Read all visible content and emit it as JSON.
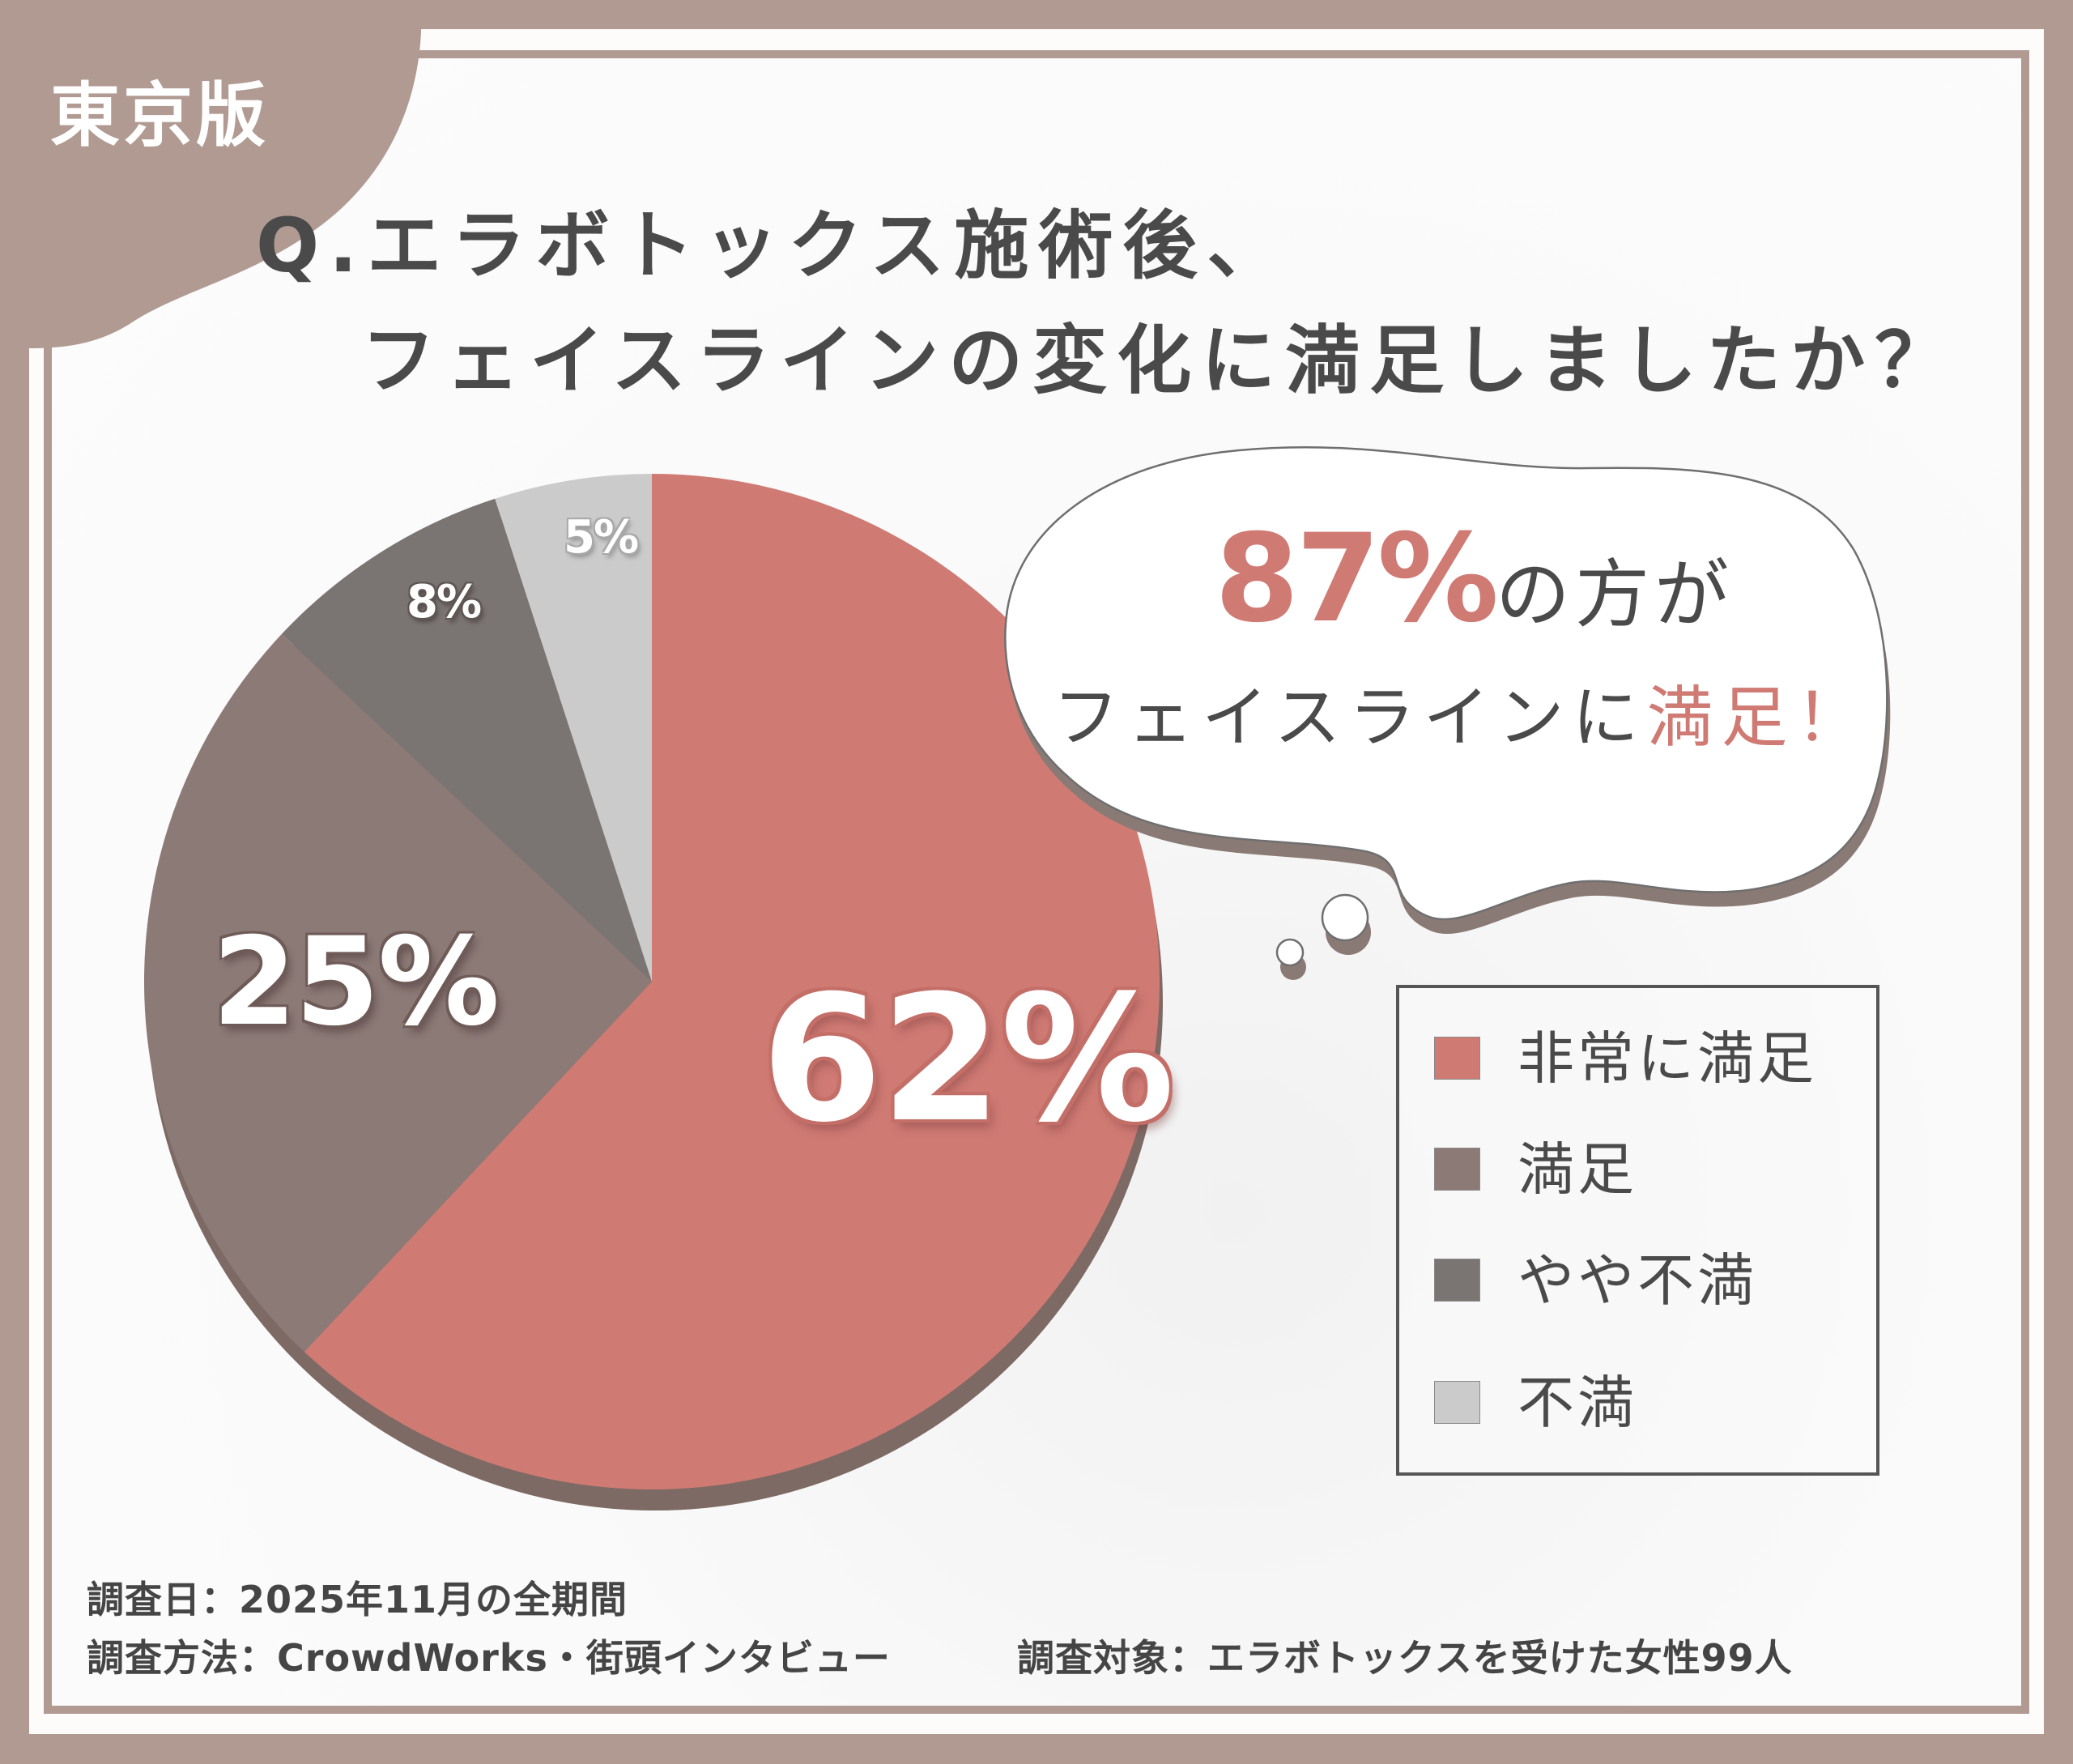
{
  "edition_tab": "東京版",
  "title": {
    "line1": "Q.エラボトックス施術後、",
    "line2": "フェイスラインの変化に満足しましたか？"
  },
  "callout": {
    "percent": "87%",
    "line1_rest": "の方が",
    "line2_prefix": "フェイスラインに",
    "line2_highlight": "満足！"
  },
  "legend": {
    "items": [
      {
        "label": "非常に満足",
        "color": "#d07a74"
      },
      {
        "label": "満足",
        "color": "#8c7a77"
      },
      {
        "label": "やや不満",
        "color": "#7a7472"
      },
      {
        "label": "不満",
        "color": "#cbcbcb"
      }
    ]
  },
  "pie_labels": {
    "very_satisfied": "62%",
    "satisfied": "25%",
    "somewhat_dissatisfied": "8%",
    "dissatisfied": "5%"
  },
  "footer": {
    "survey_date": "調査日：2025年11月の全期間",
    "survey_method": "調査方法：CrowdWorks・街頭インタビュー",
    "survey_target": "調査対象：エラボトックスを受けた女性99人"
  },
  "colors": {
    "frame": "#b09a92",
    "text": "#4a4a4a",
    "accent": "#d07a74",
    "pie_depth": "#7d6a64"
  },
  "chart_data": {
    "type": "pie",
    "title": "Q.エラボトックス施術後、フェイスラインの変化に満足しましたか？",
    "categories": [
      "非常に満足",
      "満足",
      "やや不満",
      "不満"
    ],
    "values": [
      62,
      25,
      8,
      5
    ],
    "unit": "%",
    "colors": [
      "#d07a74",
      "#8c7a77",
      "#7a7472",
      "#cbcbcb"
    ],
    "start_angle": "12 o'clock, clockwise",
    "legend_position": "right",
    "annotation": "87%の方がフェイスラインに満足！",
    "sample_size": 99
  }
}
